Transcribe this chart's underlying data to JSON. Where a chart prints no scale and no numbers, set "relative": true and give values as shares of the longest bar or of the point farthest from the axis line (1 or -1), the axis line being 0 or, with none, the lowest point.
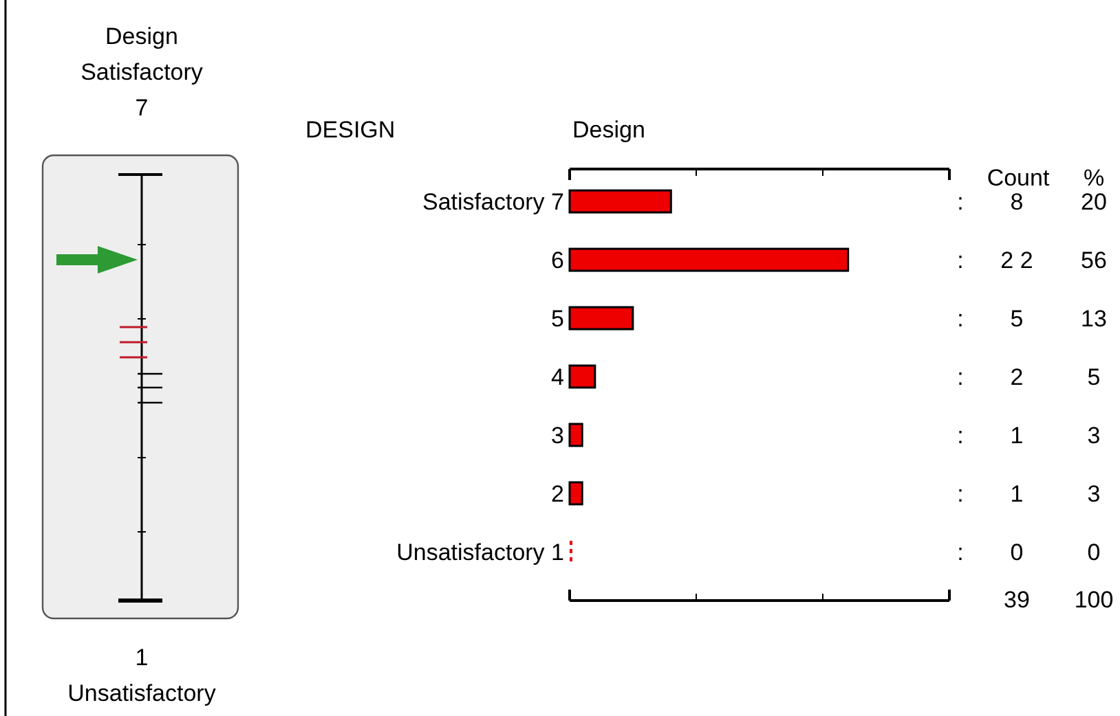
{
  "chart_data": {
    "type": "bar",
    "orientation": "horizontal",
    "title": "DESIGN",
    "xlabel": "Design",
    "categories": [
      "Satisfactory 7",
      "6",
      "5",
      "4",
      "3",
      "2",
      "Unsatisfactory 1"
    ],
    "values": [
      0.364,
      1,
      0.227,
      0.091,
      0.045,
      0.045,
      0
    ],
    "relative": true,
    "color": "#ee0000",
    "tick_labels": "y",
    "annotations": [
      "Count",
      "%",
      "39",
      "100",
      "Design",
      "Satisfactory",
      "7",
      "1",
      "Unsatisfactory",
      ":",
      "8",
      "20",
      ":",
      "2 2",
      "56",
      ":",
      "5",
      "13",
      ":",
      "2",
      "5",
      ":",
      "1",
      "3",
      ":",
      "1",
      "3",
      ":",
      "0",
      "0"
    ]
  }
}
